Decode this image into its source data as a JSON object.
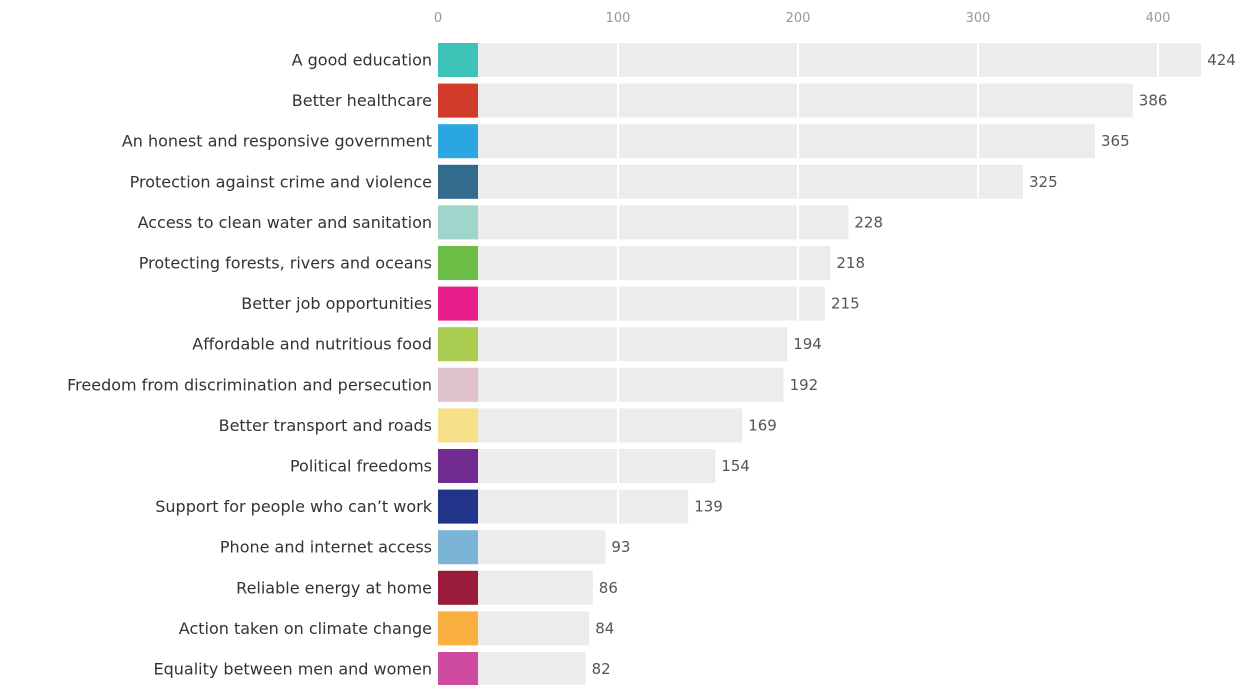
{
  "chart_data": {
    "type": "bar",
    "orientation": "horizontal",
    "title": "",
    "xlabel": "",
    "ylabel": "",
    "xlim": [
      0,
      430
    ],
    "xticks": [
      0,
      100,
      200,
      300,
      400
    ],
    "grid": true,
    "legend": "none",
    "track_color": "#ececec",
    "categories": [
      "A good education",
      "Better healthcare",
      "An honest and responsive government",
      "Protection against crime and violence",
      "Access to clean water and sanitation",
      "Protecting forests, rivers and oceans",
      "Better job opportunities",
      "Affordable and nutritious food",
      "Freedom from discrimination and persecution",
      "Better transport and roads",
      "Political freedoms",
      "Support for people who can’t work",
      "Phone and internet access",
      "Reliable energy at home",
      "Action taken on climate change",
      "Equality between men and women"
    ],
    "values": [
      424,
      386,
      365,
      325,
      228,
      218,
      215,
      194,
      192,
      169,
      154,
      139,
      93,
      86,
      84,
      82
    ],
    "colors": [
      "#3fc2b8",
      "#d03b2a",
      "#2aa6e0",
      "#336b8f",
      "#9ed6cc",
      "#6bbd45",
      "#e91e8c",
      "#a9cc51",
      "#dfc2ce",
      "#f7e08a",
      "#722b91",
      "#22338a",
      "#7ab5d8",
      "#9b1b3a",
      "#f9b03f",
      "#cd4a9e"
    ]
  }
}
